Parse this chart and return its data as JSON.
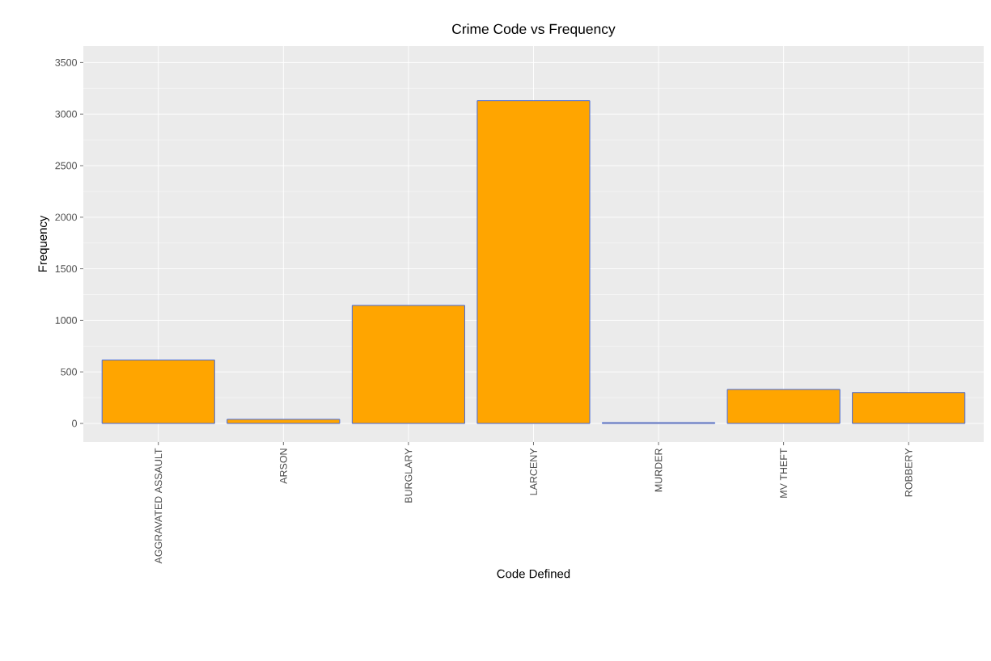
{
  "chart_data": {
    "type": "bar",
    "title": "Crime Code vs Frequency",
    "xlabel": "Code Defined",
    "ylabel": "Frequency",
    "categories": [
      "AGGRAVATED ASSAULT",
      "ARSON",
      "BURGLARY",
      "LARCENY",
      "MURDER",
      "MV THEFT",
      "ROBBERY"
    ],
    "values": [
      615,
      40,
      1145,
      3130,
      8,
      330,
      300
    ],
    "color": "#ffa500",
    "ylim": [
      -180,
      3660
    ],
    "yticks": [
      0,
      500,
      1000,
      1500,
      2000,
      2500,
      3000,
      3500
    ],
    "grid": true
  }
}
